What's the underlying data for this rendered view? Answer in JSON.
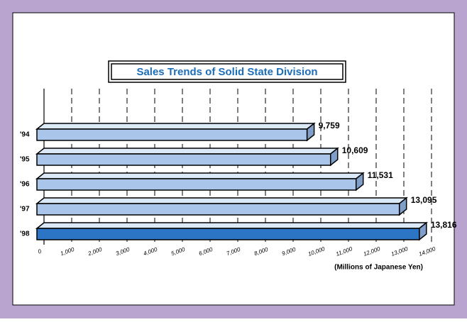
{
  "chart_data": {
    "type": "hbar3d",
    "title": "Sales Trends of Solid State Division",
    "x_label": "(Millions of Japanese Yen)",
    "categories": [
      "'94",
      "'95",
      "'96",
      "'97",
      "'98"
    ],
    "values": [
      9759,
      10609,
      11531,
      13095,
      13816
    ],
    "value_labels": [
      "9,759",
      "10,609",
      "11,531",
      "13,095",
      "13,816"
    ],
    "colors": [
      "#a9c5ea",
      "#a9c5ea",
      "#a9c5ea",
      "#a9c5ea",
      "#2c74c4"
    ],
    "xlim": [
      0,
      14000
    ],
    "xticks": [
      0,
      {
        "value": 1000,
        "label": "1,000"
      },
      {
        "value": 2000,
        "label": "2,000"
      },
      {
        "value": 3000,
        "label": "3,000"
      },
      {
        "value": 4000,
        "label": "4,000"
      },
      {
        "value": 5000,
        "label": "5,000"
      },
      {
        "value": 6000,
        "label": "6,000"
      },
      {
        "value": 7000,
        "label": "7,000"
      },
      {
        "value": 8000,
        "label": "8,000"
      },
      {
        "value": 9000,
        "label": "9,000"
      },
      {
        "value": 10000,
        "label": "10,000"
      },
      {
        "value": 11000,
        "label": "11,000"
      },
      {
        "value": 12000,
        "label": "12,000"
      },
      {
        "value": 13000,
        "label": "13,000"
      },
      {
        "value": 14000,
        "label": "14,000"
      }
    ],
    "grid": true
  }
}
